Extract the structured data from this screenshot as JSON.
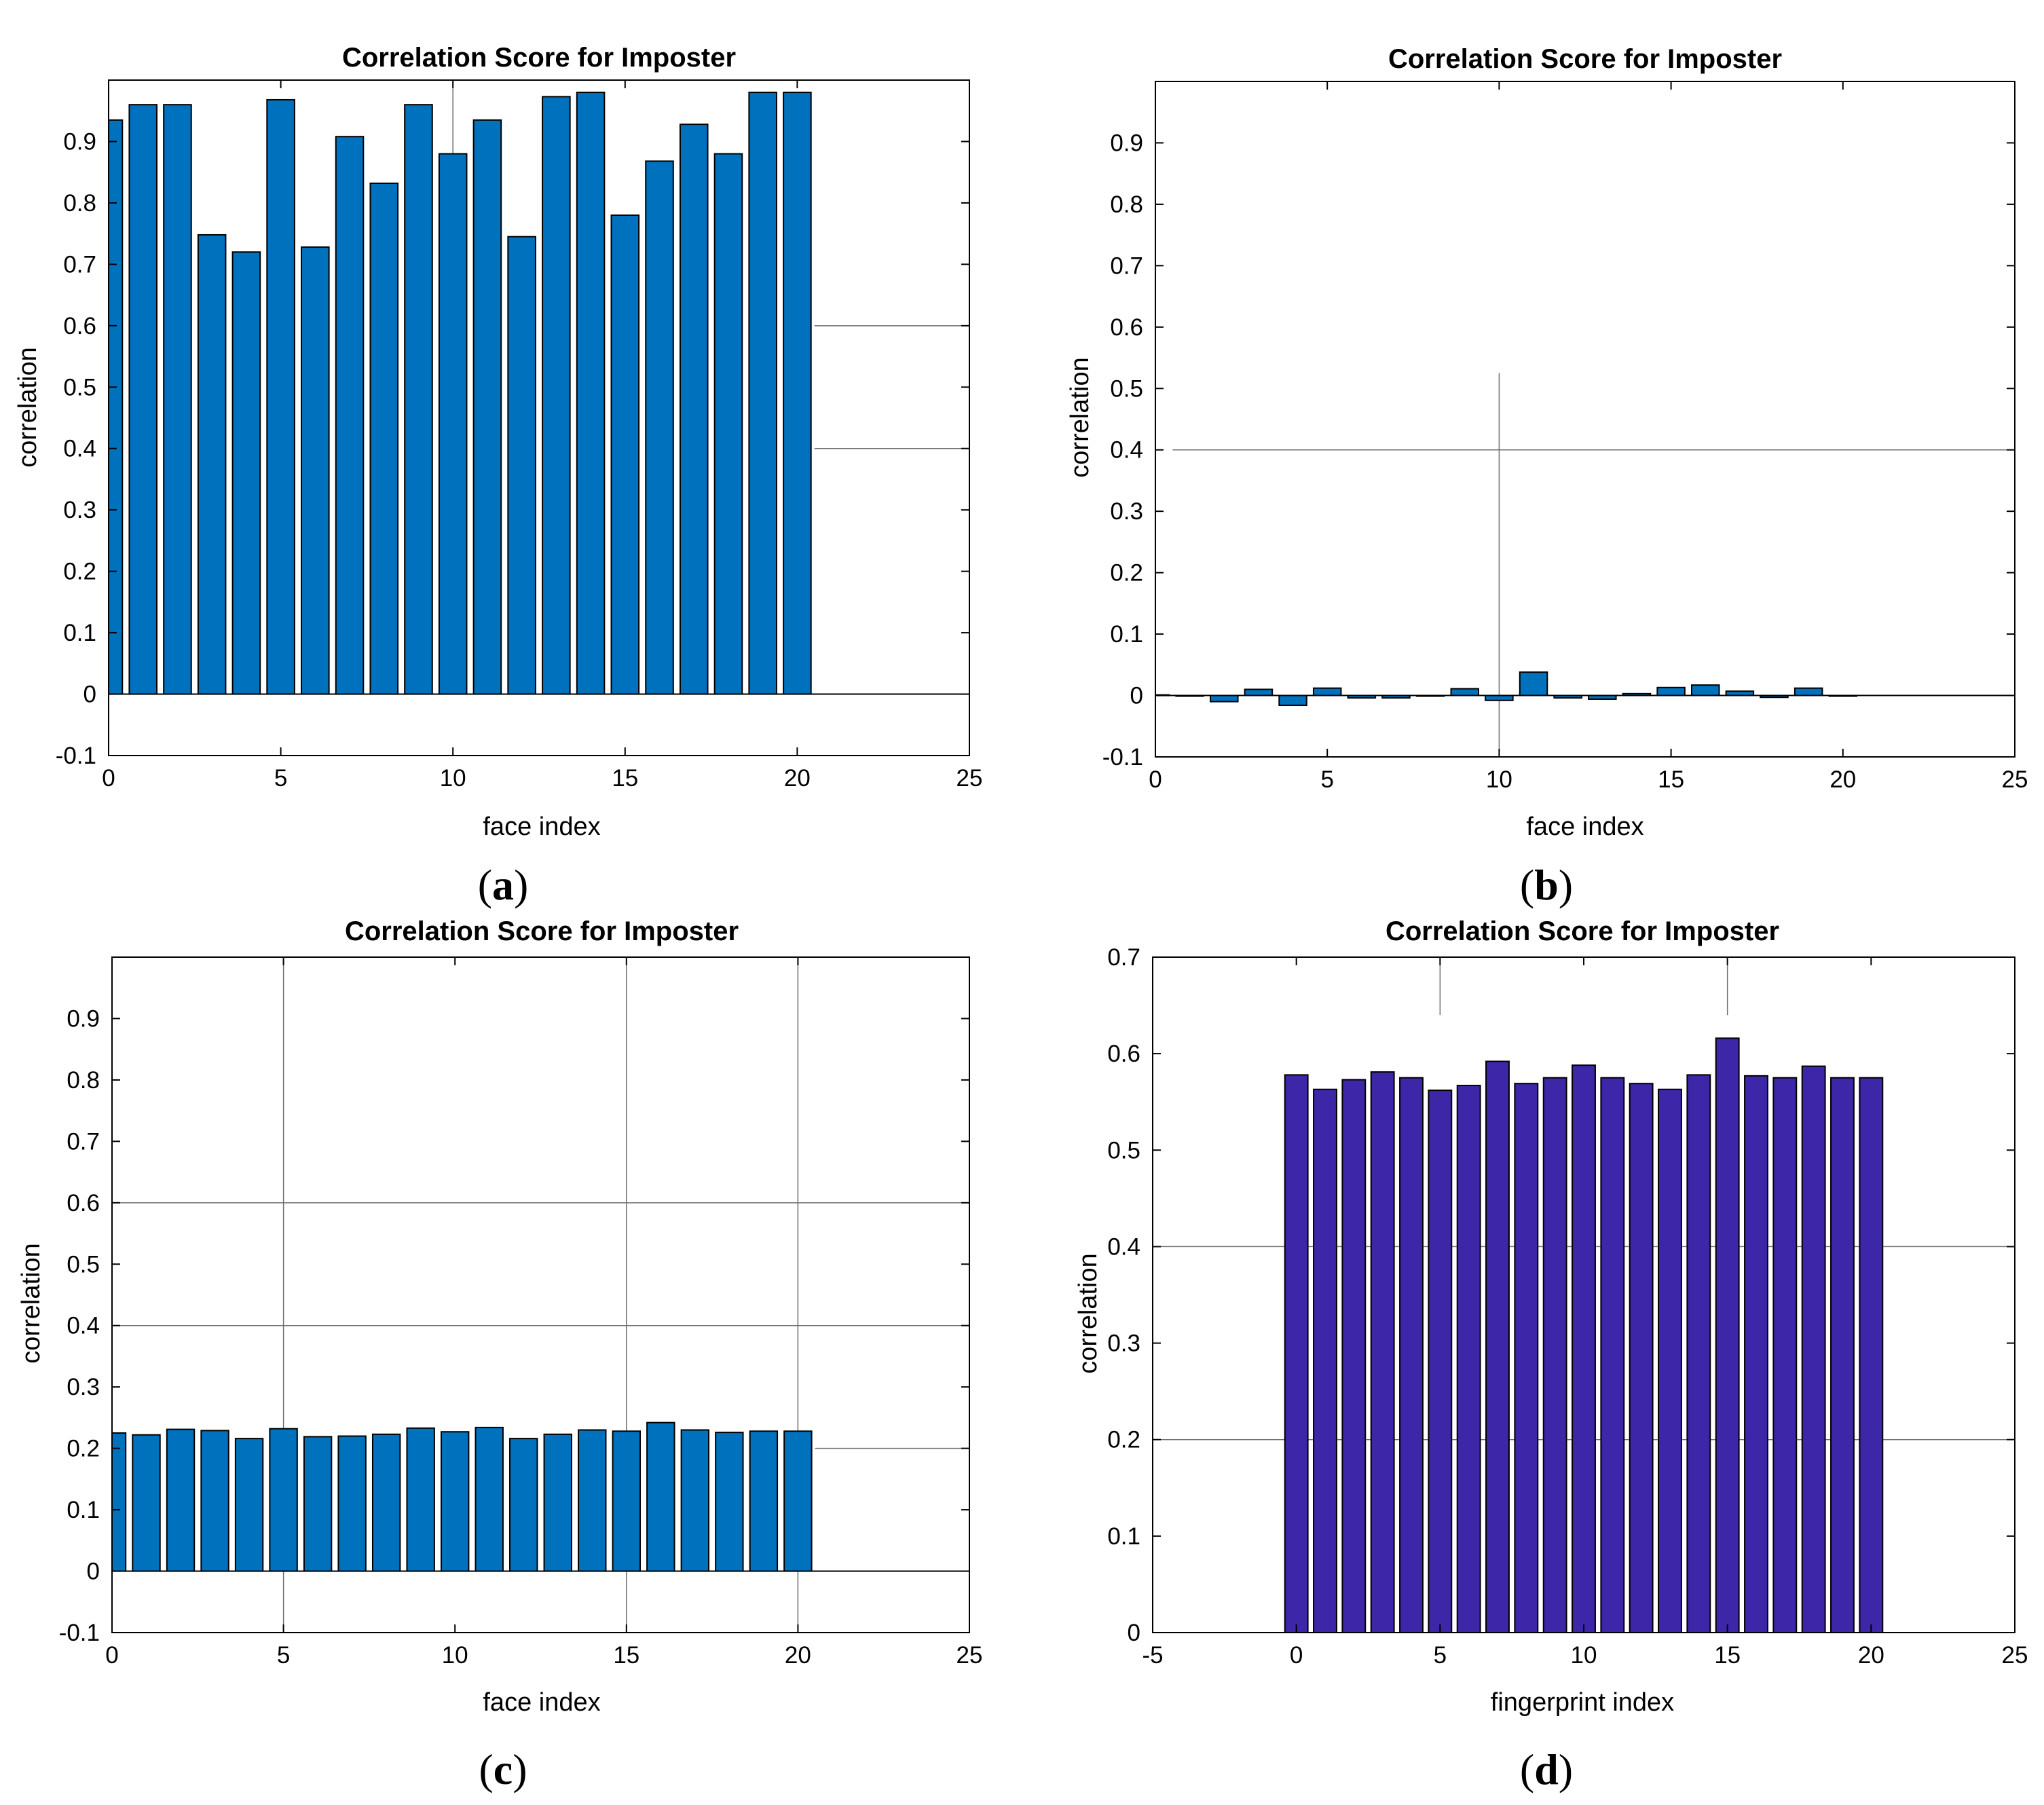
{
  "chart_data": [
    {
      "id": "a",
      "type": "bar",
      "panel_label": "a",
      "title": "Correlation Score for Imposter",
      "xlabel": "face index",
      "ylabel": "correlation",
      "xlim": [
        0,
        25
      ],
      "ylim": [
        -0.1,
        1.0
      ],
      "xticks": [
        0,
        5,
        10,
        15,
        20,
        25
      ],
      "yticks": [
        -0.1,
        0,
        0.1,
        0.2,
        0.3,
        0.4,
        0.5,
        0.6,
        0.7,
        0.8,
        0.9
      ],
      "x": [
        0,
        1,
        2,
        3,
        4,
        5,
        6,
        7,
        8,
        9,
        10,
        11,
        12,
        13,
        14,
        15,
        16,
        17,
        18,
        19,
        20
      ],
      "values": [
        0.935,
        0.96,
        0.96,
        0.748,
        0.72,
        0.968,
        0.728,
        0.908,
        0.832,
        0.96,
        0.88,
        0.935,
        0.745,
        0.973,
        0.98,
        0.78,
        0.868,
        0.928,
        0.88,
        0.98,
        0.98
      ],
      "bar_color": "#0072BD",
      "grid_lines": [
        {
          "axis": "x",
          "value": 10,
          "from": 0.52,
          "to": 1.0
        },
        {
          "axis": "y",
          "value": 0.6,
          "from": 20.5,
          "to": 25
        },
        {
          "axis": "y",
          "value": 0.4,
          "from": 20.5,
          "to": 25
        }
      ]
    },
    {
      "id": "b",
      "type": "bar",
      "panel_label": "b",
      "title": "Correlation Score for Imposter",
      "xlabel": "face index",
      "ylabel": "correlation",
      "xlim": [
        0,
        25
      ],
      "ylim": [
        -0.1,
        1.0
      ],
      "xticks": [
        0,
        5,
        10,
        15,
        20,
        25
      ],
      "yticks": [
        -0.1,
        0,
        0.1,
        0.2,
        0.3,
        0.4,
        0.5,
        0.6,
        0.7,
        0.8,
        0.9
      ],
      "x": [
        0,
        1,
        2,
        3,
        4,
        5,
        6,
        7,
        8,
        9,
        10,
        11,
        12,
        13,
        14,
        15,
        16,
        17,
        18,
        19,
        20
      ],
      "values": [
        0.001,
        -0.001,
        -0.01,
        0.01,
        -0.016,
        0.012,
        -0.004,
        -0.004,
        -0.001,
        0.011,
        -0.008,
        0.038,
        -0.004,
        -0.006,
        0.003,
        0.013,
        0.017,
        0.007,
        -0.003,
        0.012,
        0.0
      ],
      "bar_color": "#0072BD",
      "grid_lines": [
        {
          "axis": "x",
          "value": 10,
          "from": -0.1,
          "to": 0.525
        },
        {
          "axis": "y",
          "value": 0.4,
          "from": 0.5,
          "to": 25
        }
      ]
    },
    {
      "id": "c",
      "type": "bar",
      "panel_label": "c",
      "title": "Correlation Score for Imposter",
      "xlabel": "face index",
      "ylabel": "correlation",
      "xlim": [
        0,
        25
      ],
      "ylim": [
        -0.1,
        1.0
      ],
      "xticks": [
        0,
        5,
        10,
        15,
        20,
        25
      ],
      "yticks": [
        -0.1,
        0,
        0.1,
        0.2,
        0.3,
        0.4,
        0.5,
        0.6,
        0.7,
        0.8,
        0.9
      ],
      "x": [
        0,
        1,
        2,
        3,
        4,
        5,
        6,
        7,
        8,
        9,
        10,
        11,
        12,
        13,
        14,
        15,
        16,
        17,
        18,
        19,
        20
      ],
      "values": [
        0.225,
        0.222,
        0.231,
        0.229,
        0.216,
        0.232,
        0.219,
        0.22,
        0.223,
        0.233,
        0.227,
        0.234,
        0.216,
        0.223,
        0.23,
        0.228,
        0.242,
        0.23,
        0.226,
        0.228,
        0.228
      ],
      "bar_color": "#0072BD",
      "grid_lines": [
        {
          "axis": "x",
          "value": 5,
          "from": -0.1,
          "to": 1.0
        },
        {
          "axis": "x",
          "value": 15,
          "from": -0.1,
          "to": 1.0
        },
        {
          "axis": "x",
          "value": 20,
          "from": -0.1,
          "to": 1.0
        },
        {
          "axis": "y",
          "value": 0.6,
          "from": 0,
          "to": 25
        },
        {
          "axis": "y",
          "value": 0.4,
          "from": 0,
          "to": 25
        },
        {
          "axis": "y",
          "value": 0.2,
          "from": 20.5,
          "to": 25
        }
      ]
    },
    {
      "id": "d",
      "type": "bar",
      "panel_label": "d",
      "title": "Correlation Score for Imposter",
      "xlabel": "fingerprint index",
      "ylabel": "correlation",
      "xlim": [
        -5,
        25
      ],
      "ylim": [
        0,
        0.7
      ],
      "xticks": [
        -5,
        0,
        5,
        10,
        15,
        20,
        25
      ],
      "yticks": [
        0,
        0.1,
        0.2,
        0.3,
        0.4,
        0.5,
        0.6,
        0.7
      ],
      "x": [
        0,
        1,
        2,
        3,
        4,
        5,
        6,
        7,
        8,
        9,
        10,
        11,
        12,
        13,
        14,
        15,
        16,
        17,
        18,
        19,
        20
      ],
      "values": [
        0.578,
        0.563,
        0.573,
        0.581,
        0.575,
        0.562,
        0.567,
        0.592,
        0.569,
        0.575,
        0.588,
        0.575,
        0.569,
        0.563,
        0.578,
        0.616,
        0.577,
        0.575,
        0.587,
        0.575,
        0.575
      ],
      "bar_color": "#3D26A8",
      "grid_lines": [
        {
          "axis": "x",
          "value": 5,
          "from": 0.64,
          "to": 0.7
        },
        {
          "axis": "x",
          "value": 15,
          "from": 0.64,
          "to": 0.7
        },
        {
          "axis": "y",
          "value": 0.4,
          "from": -5,
          "to": 25
        },
        {
          "axis": "y",
          "value": 0.2,
          "from": -5,
          "to": 25
        }
      ]
    }
  ]
}
